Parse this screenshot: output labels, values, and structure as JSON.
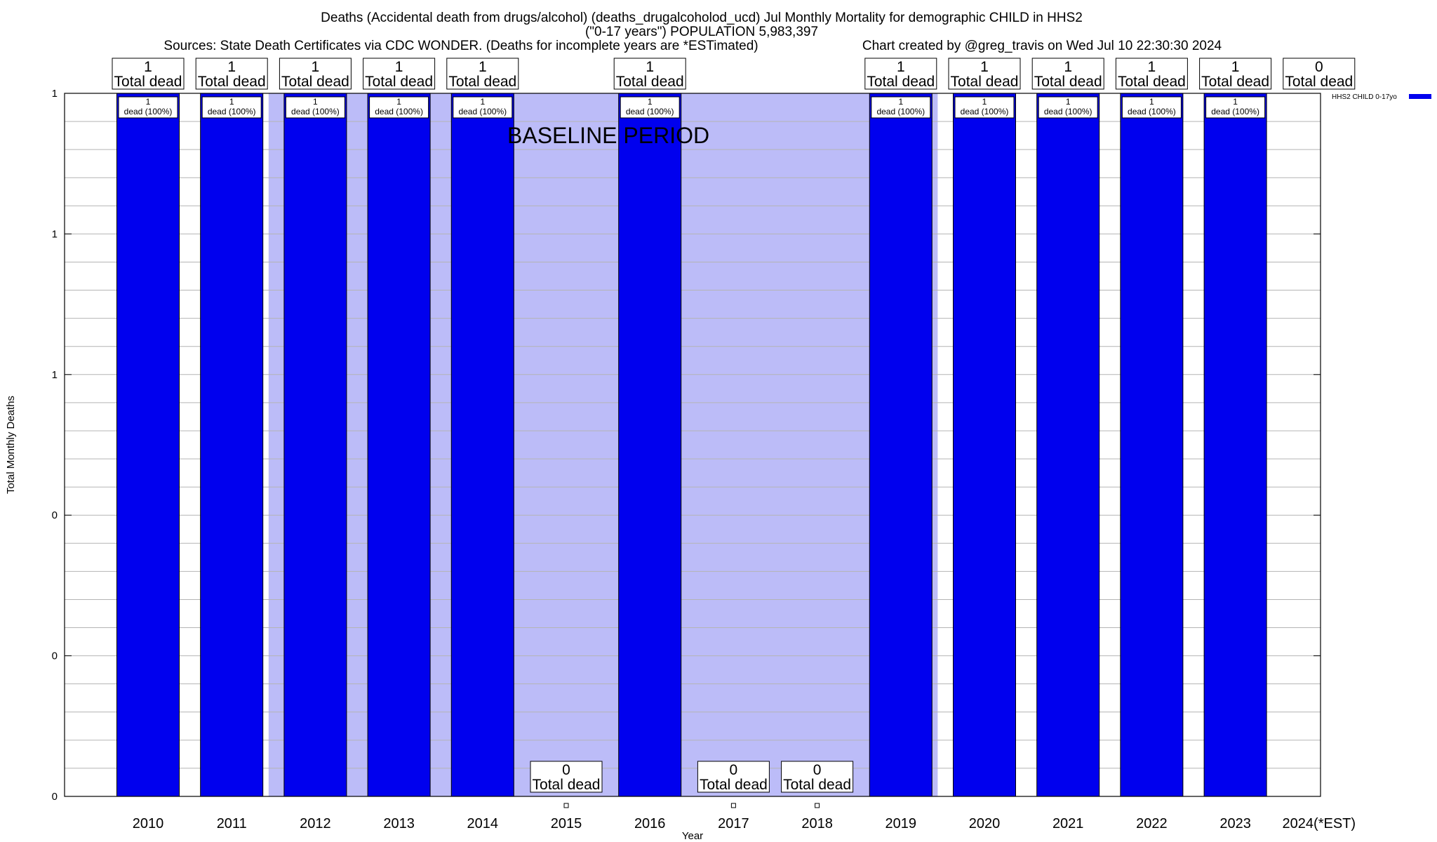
{
  "header": {
    "title_line1": "Deaths (Accidental death from drugs/alcohol) (deaths_drugalcoholod_ucd) Jul Monthly Mortality for demographic CHILD in HHS2",
    "title_line2": "(\"0-17 years\") POPULATION 5,983,397",
    "sources": "Sources: State Death Certificates via CDC WONDER. (Deaths for incomplete years are *ESTimated)",
    "credit": "Chart created by @greg_travis on Wed Jul 10 22:30:30 2024"
  },
  "colors": {
    "bar": "#0000ee",
    "baseline_band": "#bcbcf8",
    "grid": "#b4b4b4"
  },
  "chart_data": {
    "type": "bar",
    "categories": [
      "2010",
      "2011",
      "2012",
      "2013",
      "2014",
      "2015",
      "2016",
      "2017",
      "2018",
      "2019",
      "2020",
      "2021",
      "2022",
      "2023",
      "2024(*EST)"
    ],
    "series": [
      {
        "name": "HHS2 CHILD 0-17yo",
        "values": [
          1,
          1,
          1,
          1,
          1,
          0,
          1,
          0,
          0,
          1,
          1,
          1,
          1,
          1,
          0
        ]
      }
    ],
    "top_labels": [
      "1",
      "1",
      "1",
      "1",
      "1",
      "",
      "1",
      "",
      "",
      "1",
      "1",
      "1",
      "1",
      "1",
      "0"
    ],
    "top_label_word": "Total dead",
    "bottom_labels": [
      "",
      "",
      "",
      "",
      "",
      "0",
      "",
      "0",
      "0",
      "",
      "",
      "",
      "",
      "",
      ""
    ],
    "inner_labels": [
      "1",
      "1",
      "1",
      "1",
      "1",
      "",
      "1",
      "",
      "",
      "1",
      "1",
      "1",
      "1",
      "1",
      ""
    ],
    "inner_label_word": "dead (100%)",
    "baseline_label": "BASELINE PERIOD",
    "baseline_period": [
      "2012",
      "2019"
    ],
    "ylabel": "Total Monthly Deaths",
    "xlabel": "Year",
    "ylim": [
      0,
      1
    ],
    "y_tick_labels": [
      "0",
      "0",
      "0",
      "1",
      "1",
      "1"
    ],
    "grid": true,
    "legend_position": "top-right"
  }
}
